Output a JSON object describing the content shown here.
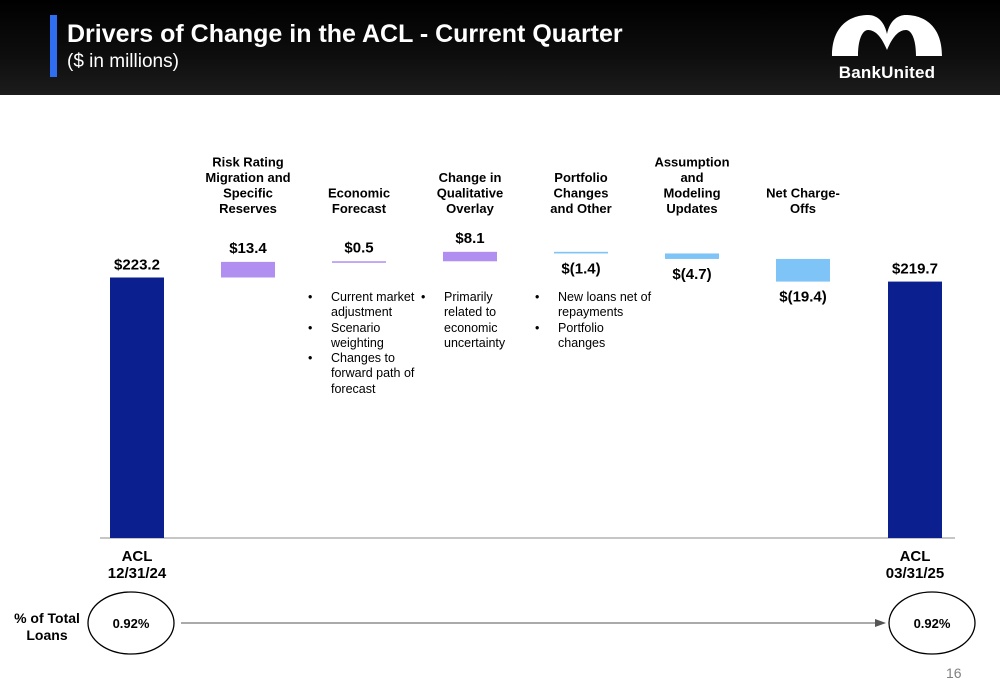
{
  "header": {
    "title": "Drivers of Change in the ACL - Current Quarter",
    "subtitle": "($ in millions)",
    "logo_text": "BankUnited"
  },
  "chart_data": {
    "type": "bar",
    "subtype": "waterfall",
    "categories": [
      "ACL 12/31/24",
      "Risk Rating Migration and Specific Reserves",
      "Economic Forecast",
      "Change in Qualitative Overlay",
      "Portfolio Changes and Other",
      "Assumption and Modeling Updates",
      "Net Charge-Offs",
      "ACL 03/31/25"
    ],
    "category_lines": [
      [
        "ACL",
        "12/31/24"
      ],
      [
        "Risk Rating",
        "Migration and",
        "Specific",
        "Reserves"
      ],
      [
        "Economic",
        "Forecast"
      ],
      [
        "Change in",
        "Qualitative",
        "Overlay"
      ],
      [
        "Portfolio",
        "Changes",
        "and Other"
      ],
      [
        "Assumption",
        "and",
        "Modeling",
        "Updates"
      ],
      [
        "Net Charge-",
        "Offs"
      ],
      [
        "ACL",
        "03/31/25"
      ]
    ],
    "values": [
      223.2,
      13.4,
      0.5,
      8.1,
      -1.4,
      -4.7,
      -19.4,
      219.7
    ],
    "value_labels": [
      "$223.2",
      "$13.4",
      "$0.5",
      "$8.1",
      "$(1.4)",
      "$(4.7)",
      "$(19.4)",
      "$219.7"
    ],
    "kinds": [
      "total",
      "delta",
      "delta",
      "delta",
      "delta",
      "delta",
      "delta",
      "total"
    ],
    "colors": {
      "total": "#0b1f8f",
      "increase": "#b18ff0",
      "decrease": "#7fc4f7"
    },
    "notes": [
      [
        "Current market adjustment",
        "Scenario weighting",
        "Changes to forward path of forecast"
      ],
      [
        "Primarily related to economic uncertainty"
      ],
      [
        "New loans net of repayments",
        "Portfolio changes"
      ]
    ],
    "percent_of_total_loans": {
      "label": "% of Total Loans",
      "start": "0.92%",
      "end": "0.92%"
    }
  },
  "page_number": "16"
}
